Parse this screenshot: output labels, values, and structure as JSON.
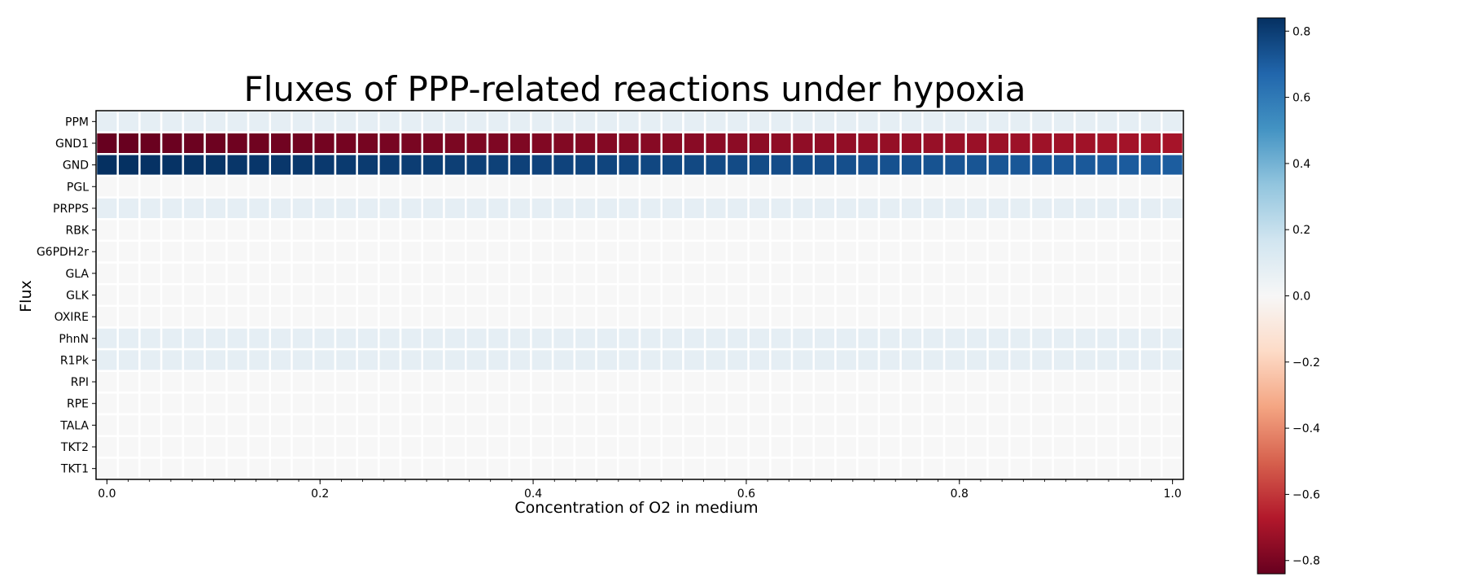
{
  "chart_data": {
    "type": "heatmap",
    "title": "Fluxes of PPP-related reactions under hypoxia",
    "xlabel": "Concentration of O2 in medium",
    "ylabel": "Flux",
    "xlim": [
      0,
      1
    ],
    "x_ticks": [
      "0.0",
      "0.2",
      "0.4",
      "0.6",
      "0.8",
      "1.0"
    ],
    "x_tick_values": [
      0,
      0.2,
      0.4,
      0.6,
      0.8,
      1.0
    ],
    "n_columns": 50,
    "rows": [
      {
        "name": "PPM",
        "start": 0.08,
        "end": 0.08
      },
      {
        "name": "GND1",
        "start": -0.84,
        "end": -0.7
      },
      {
        "name": "GND",
        "start": 0.84,
        "end": 0.7
      },
      {
        "name": "PGL",
        "start": 0.0,
        "end": 0.0
      },
      {
        "name": "PRPPS",
        "start": 0.08,
        "end": 0.08
      },
      {
        "name": "RBK",
        "start": 0.0,
        "end": 0.0
      },
      {
        "name": "G6PDH2r",
        "start": 0.0,
        "end": 0.0
      },
      {
        "name": "GLA",
        "start": 0.0,
        "end": 0.0
      },
      {
        "name": "GLK",
        "start": 0.0,
        "end": 0.0
      },
      {
        "name": "OXIRE",
        "start": 0.0,
        "end": 0.0
      },
      {
        "name": "PhnN",
        "start": 0.08,
        "end": 0.08
      },
      {
        "name": "R1Pk",
        "start": 0.08,
        "end": 0.08
      },
      {
        "name": "RPI",
        "start": 0.0,
        "end": 0.0
      },
      {
        "name": "RPE",
        "start": 0.0,
        "end": 0.0
      },
      {
        "name": "TALA",
        "start": 0.0,
        "end": 0.0
      },
      {
        "name": "TKT2",
        "start": 0.0,
        "end": 0.0
      },
      {
        "name": "TKT1",
        "start": 0.0,
        "end": 0.0
      }
    ],
    "colorbar": {
      "colormap": "RdBu",
      "range": [
        -0.84,
        0.84
      ],
      "ticks": [
        "0.8",
        "0.6",
        "0.4",
        "0.2",
        "0.0",
        "−0.2",
        "−0.4",
        "−0.6",
        "−0.8"
      ],
      "tick_values": [
        0.8,
        0.6,
        0.4,
        0.2,
        0.0,
        -0.2,
        -0.4,
        -0.6,
        -0.8
      ]
    },
    "grid": false,
    "legend": "colorbar-right"
  }
}
